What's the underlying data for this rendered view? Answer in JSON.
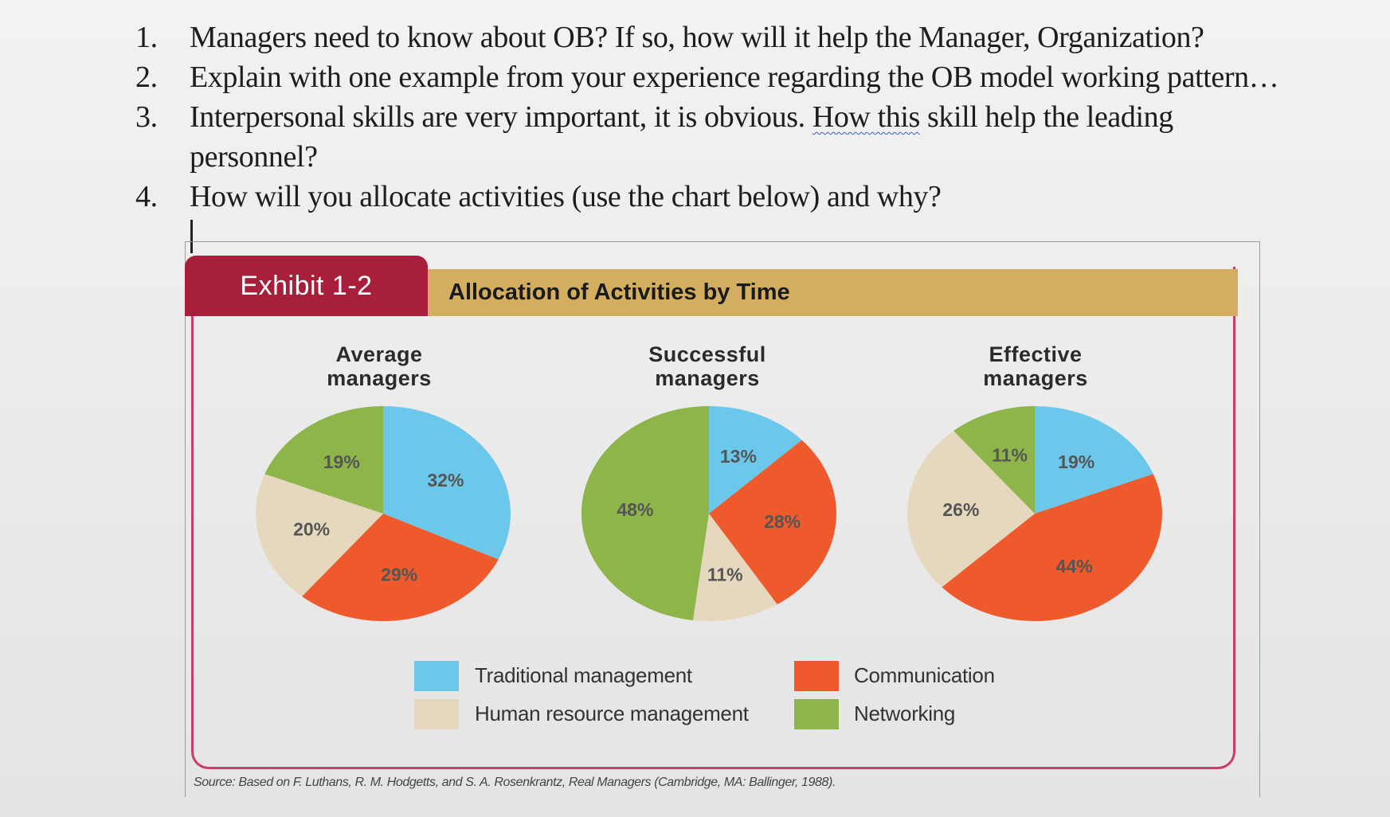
{
  "questions": [
    {
      "num": "1.",
      "text": "Managers need to know about OB? If so, how will it help the Manager, Organization?"
    },
    {
      "num": "2.",
      "text": "Explain with one example from your experience regarding the OB model working pattern…"
    },
    {
      "num": "3.",
      "text_a": "Interpersonal skills are very important, it is obvious. ",
      "text_b": "How this",
      "text_c": " skill help the leading",
      "text_d": "personnel?"
    },
    {
      "num": "4.",
      "text": "How will you allocate activities (use the chart below) and why?"
    }
  ],
  "exhibit": {
    "badge": "Exhibit 1-2",
    "title": "Allocation of Activities by Time",
    "source": "Source: Based on F. Luthans, R. M. Hodgetts, and S. A. Rosenkrantz, Real Managers (Cambridge, MA: Ballinger, 1988)."
  },
  "colors": {
    "traditional": "#6cc8ea",
    "communication": "#ee5a2c",
    "hr": "#e6d8be",
    "networking": "#8db54a"
  },
  "chart_data": [
    {
      "type": "pie",
      "title_line1": "Average",
      "title_line2": "managers",
      "slices": [
        {
          "category": "Traditional management",
          "value": 32,
          "label": "32%"
        },
        {
          "category": "Communication",
          "value": 29,
          "label": "29%"
        },
        {
          "category": "Human resource management",
          "value": 20,
          "label": "20%"
        },
        {
          "category": "Networking",
          "value": 19,
          "label": "19%"
        }
      ]
    },
    {
      "type": "pie",
      "title_line1": "Successful",
      "title_line2": "managers",
      "slices": [
        {
          "category": "Traditional management",
          "value": 13,
          "label": "13%"
        },
        {
          "category": "Communication",
          "value": 28,
          "label": "28%"
        },
        {
          "category": "Human resource management",
          "value": 11,
          "label": "11%"
        },
        {
          "category": "Networking",
          "value": 48,
          "label": "48%"
        }
      ]
    },
    {
      "type": "pie",
      "title_line1": "Effective",
      "title_line2": "managers",
      "slices": [
        {
          "category": "Traditional management",
          "value": 19,
          "label": "19%"
        },
        {
          "category": "Communication",
          "value": 44,
          "label": "44%"
        },
        {
          "category": "Human resource management",
          "value": 26,
          "label": "26%"
        },
        {
          "category": "Networking",
          "value": 11,
          "label": "11%"
        }
      ]
    }
  ],
  "legend": [
    {
      "key": "traditional",
      "label": "Traditional management"
    },
    {
      "key": "hr",
      "label": "Human resource management"
    },
    {
      "key": "communication",
      "label": "Communication"
    },
    {
      "key": "networking",
      "label": "Networking"
    }
  ]
}
